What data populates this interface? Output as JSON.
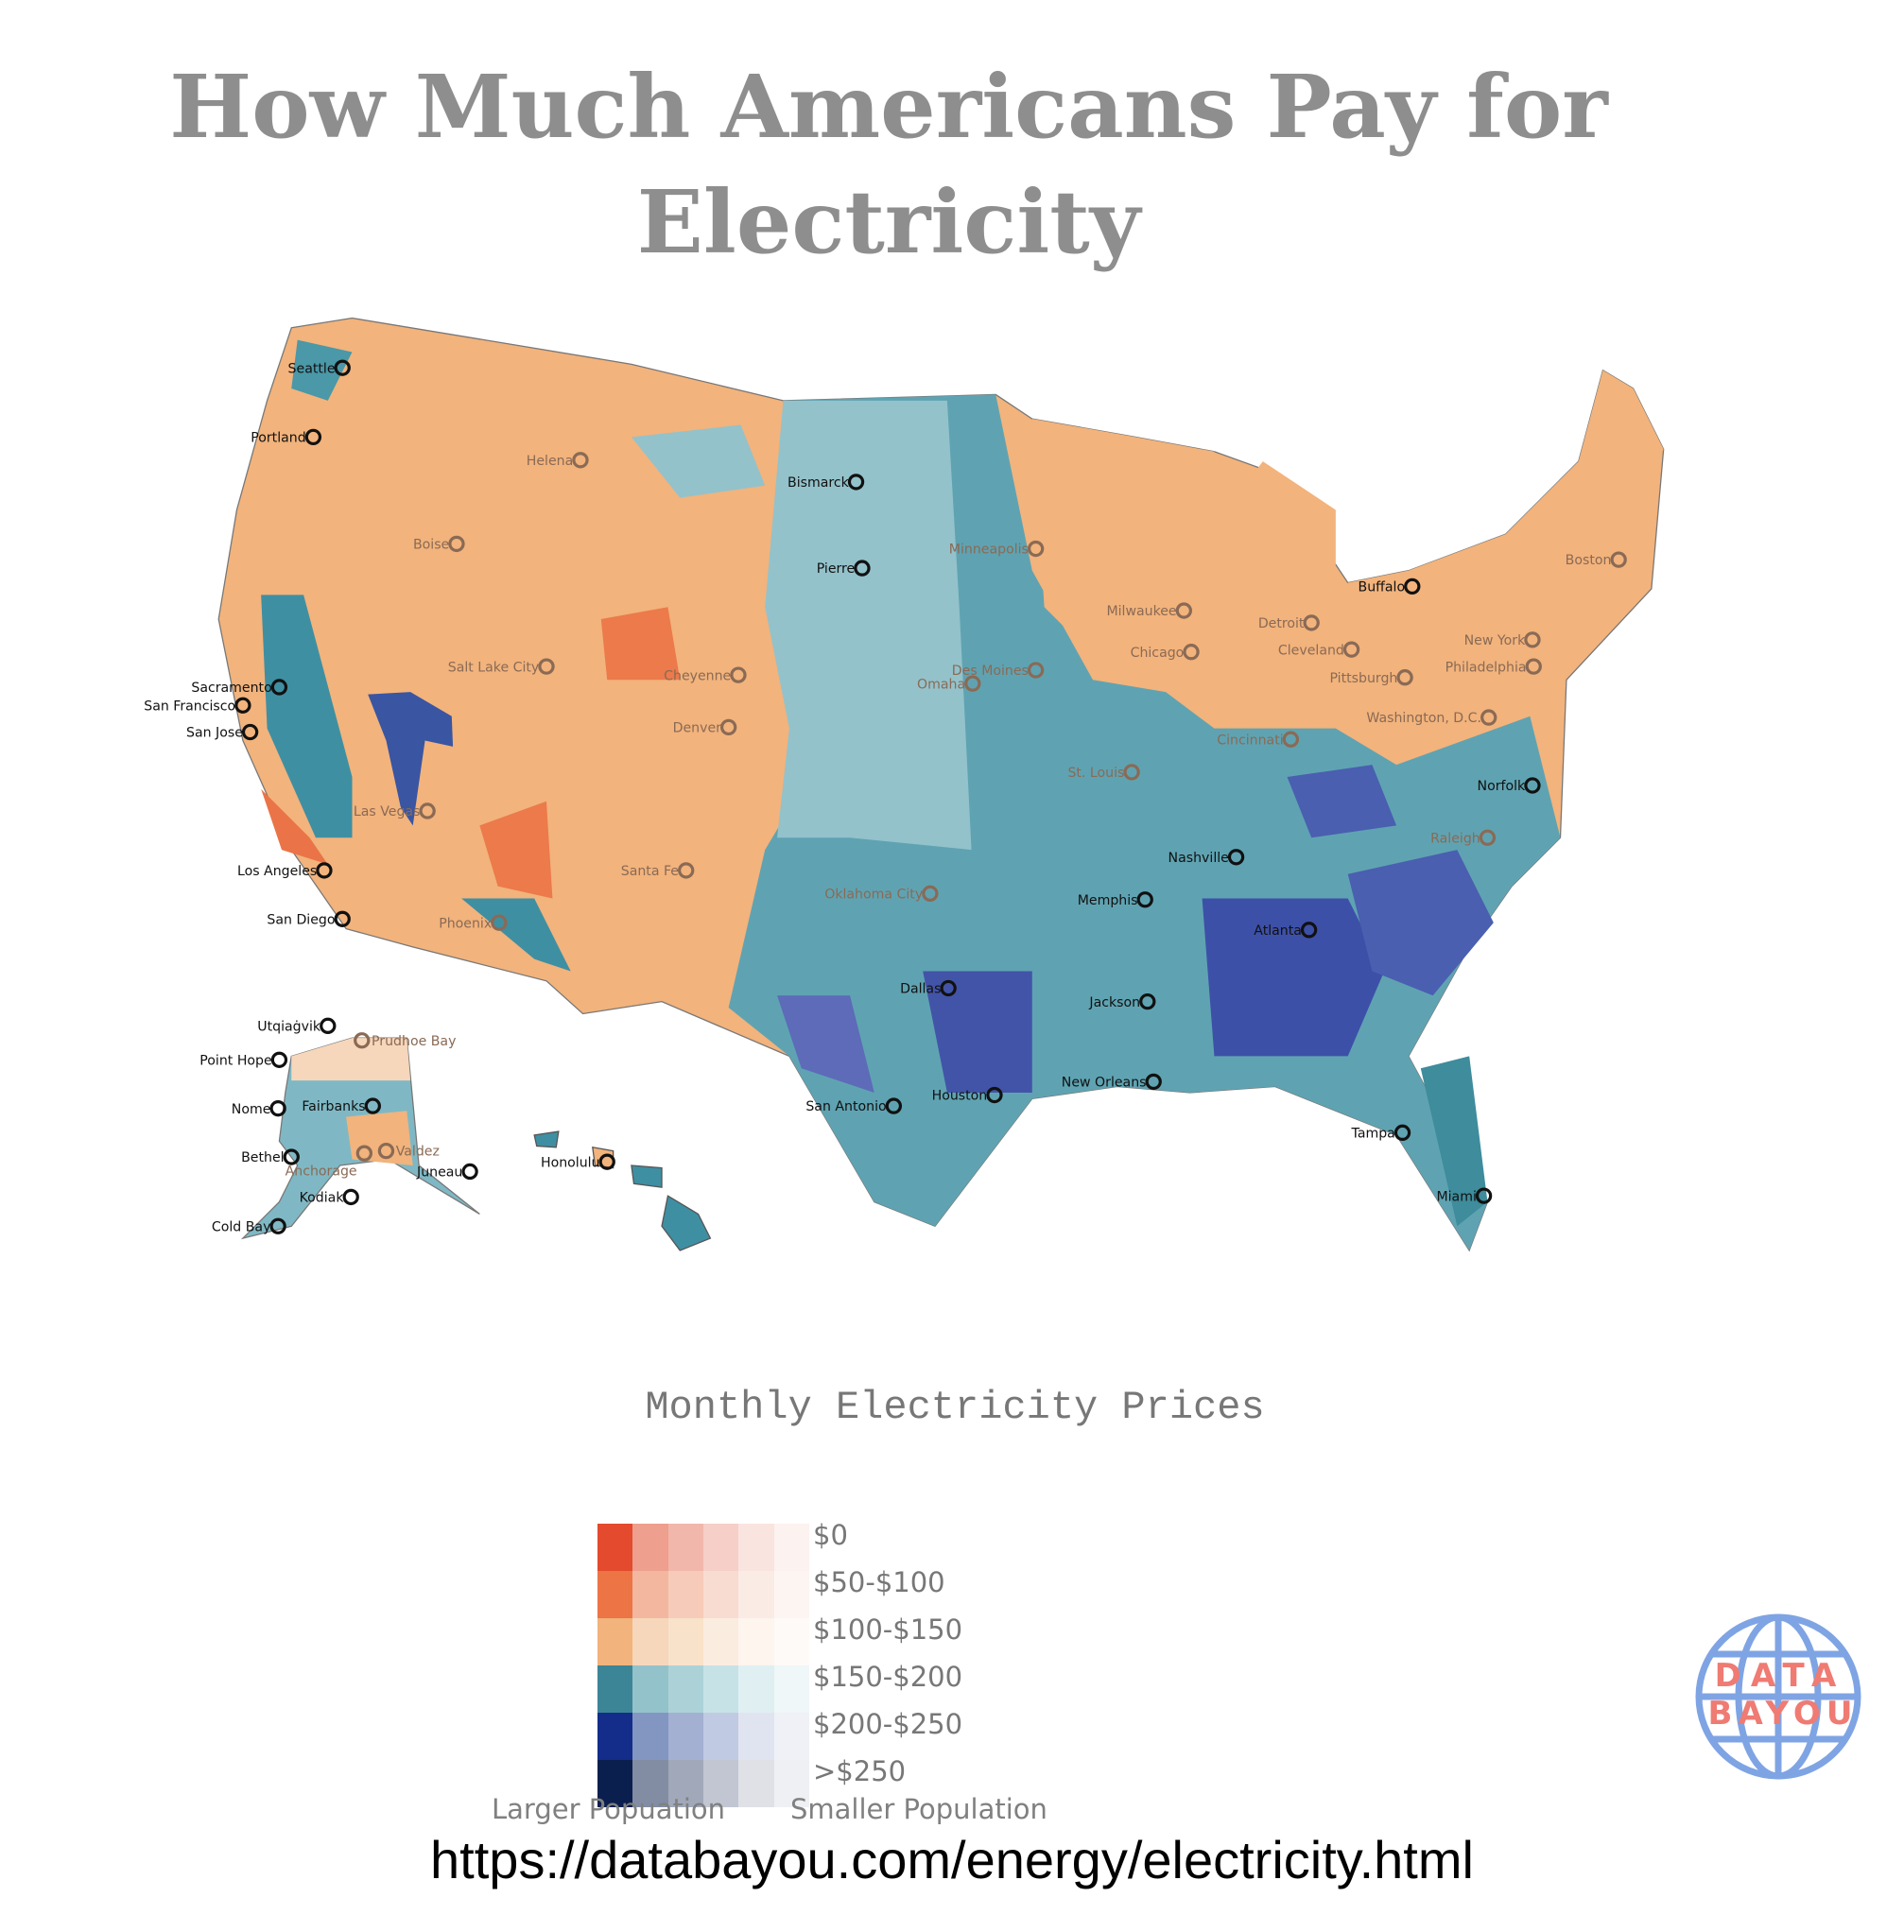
{
  "title": "How Much Americans Pay for Electricity",
  "legend": {
    "title": "Monthly Electricity Prices",
    "rows": [
      "$0",
      "$50-$100",
      "$100-$150",
      "$150-$200",
      "$200-$250",
      ">$250"
    ],
    "columns_left_label": "Larger Popuation",
    "columns_right_label": "Smaller Population",
    "colors": [
      [
        "#e44a2d",
        "#ee9f8d",
        "#f2b7ab",
        "#f5cfc8",
        "#f9e4df",
        "#fcf2f0"
      ],
      [
        "#ec7445",
        "#f3b7a0",
        "#f6cbb9",
        "#f8dcd1",
        "#fbebe5",
        "#fdf5f2"
      ],
      [
        "#f2b37c",
        "#f6d7bb",
        "#f9e2ca",
        "#fbece0",
        "#fdf5ee",
        "#fefaf7"
      ],
      [
        "#3c8596",
        "#93c2cb",
        "#acd2d8",
        "#c7e2e6",
        "#e0eff1",
        "#eff7f8"
      ],
      [
        "#142c8a",
        "#8396c2",
        "#a3b0d2",
        "#c1cae3",
        "#e0e4f0",
        "#eff1f6"
      ],
      [
        "#0b1f4e",
        "#828ca3",
        "#a0a8ba",
        "#c1c6d2",
        "#dfe1e7",
        "#eff0f3"
      ]
    ]
  },
  "cities": [
    {
      "name": "Seattle",
      "tone": "dark"
    },
    {
      "name": "Portland",
      "tone": "dark"
    },
    {
      "name": "Helena",
      "tone": "muted"
    },
    {
      "name": "Bismarck",
      "tone": "dark"
    },
    {
      "name": "Boise",
      "tone": "muted"
    },
    {
      "name": "Minneapolis",
      "tone": "muted"
    },
    {
      "name": "Pierre",
      "tone": "dark"
    },
    {
      "name": "Milwaukee",
      "tone": "muted"
    },
    {
      "name": "Buffalo",
      "tone": "dark"
    },
    {
      "name": "Boston",
      "tone": "muted"
    },
    {
      "name": "Detroit",
      "tone": "muted"
    },
    {
      "name": "Chicago",
      "tone": "muted"
    },
    {
      "name": "Cleveland",
      "tone": "muted"
    },
    {
      "name": "New York",
      "tone": "muted"
    },
    {
      "name": "Salt Lake City",
      "tone": "muted"
    },
    {
      "name": "Cheyenne",
      "tone": "muted"
    },
    {
      "name": "Des Moines",
      "tone": "muted"
    },
    {
      "name": "Omaha",
      "tone": "muted"
    },
    {
      "name": "Pittsburgh",
      "tone": "muted"
    },
    {
      "name": "Philadelphia",
      "tone": "muted"
    },
    {
      "name": "Sacramento",
      "tone": "dark"
    },
    {
      "name": "San Francisco",
      "tone": "dark"
    },
    {
      "name": "San Jose",
      "tone": "dark"
    },
    {
      "name": "Denver",
      "tone": "muted"
    },
    {
      "name": "Washington, D.C.",
      "tone": "muted"
    },
    {
      "name": "Cincinnati",
      "tone": "muted"
    },
    {
      "name": "St. Louis",
      "tone": "muted"
    },
    {
      "name": "Norfolk",
      "tone": "dark"
    },
    {
      "name": "Las Vegas",
      "tone": "muted"
    },
    {
      "name": "Nashville",
      "tone": "dark"
    },
    {
      "name": "Raleigh",
      "tone": "muted"
    },
    {
      "name": "Los Angeles",
      "tone": "dark"
    },
    {
      "name": "Santa Fe",
      "tone": "muted"
    },
    {
      "name": "Oklahoma City",
      "tone": "muted"
    },
    {
      "name": "Memphis",
      "tone": "dark"
    },
    {
      "name": "Atlanta",
      "tone": "dark"
    },
    {
      "name": "San Diego",
      "tone": "dark"
    },
    {
      "name": "Phoenix",
      "tone": "muted"
    },
    {
      "name": "Dallas",
      "tone": "dark"
    },
    {
      "name": "Jackson",
      "tone": "dark"
    },
    {
      "name": "New Orleans",
      "tone": "dark"
    },
    {
      "name": "Houston",
      "tone": "dark"
    },
    {
      "name": "San Antonio",
      "tone": "dark"
    },
    {
      "name": "Tampa",
      "tone": "dark"
    },
    {
      "name": "Miami",
      "tone": "dark"
    },
    {
      "name": "Utqiaġvik",
      "tone": "dark"
    },
    {
      "name": "Prudhoe Bay",
      "tone": "muted"
    },
    {
      "name": "Point Hope",
      "tone": "dark"
    },
    {
      "name": "Nome",
      "tone": "dark"
    },
    {
      "name": "Fairbanks",
      "tone": "dark"
    },
    {
      "name": "Bethel",
      "tone": "dark"
    },
    {
      "name": "Anchorage",
      "tone": "muted"
    },
    {
      "name": "Valdez",
      "tone": "muted"
    },
    {
      "name": "Juneau",
      "tone": "dark"
    },
    {
      "name": "Kodiak",
      "tone": "dark"
    },
    {
      "name": "Cold Bay",
      "tone": "dark"
    },
    {
      "name": "Honolulu",
      "tone": "dark"
    }
  ],
  "logo": {
    "text_line1": "DATA",
    "text_line2": "BAYOU",
    "globe_color": "#7fa4e4",
    "text_color": "#ef7b72"
  },
  "footer_url": "https://databayou.com/energy/electricity.html"
}
